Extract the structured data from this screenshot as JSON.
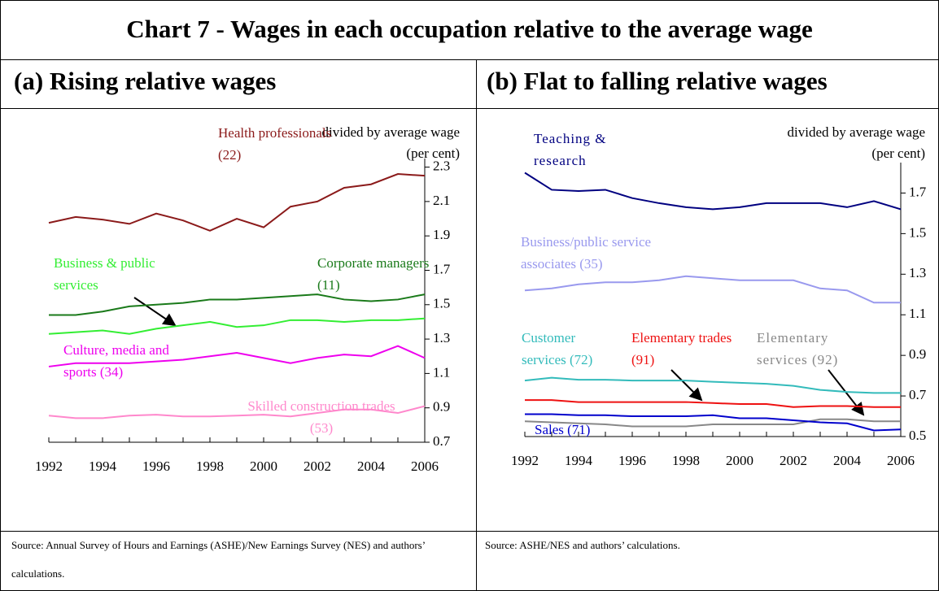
{
  "title": "Chart 7 - Wages in each occupation relative to the average wage",
  "chart_data": [
    {
      "type": "line",
      "title": "(a) Rising relative wages",
      "y_label": "divided by average wage (per cent)",
      "source": "Source: Annual Survey of Hours and Earnings (ASHE)/New Earnings Survey (NES) and authors’ calculations.",
      "x": [
        1992,
        1993,
        1994,
        1995,
        1996,
        1997,
        1998,
        1999,
        2000,
        2001,
        2002,
        2003,
        2004,
        2005,
        2006
      ],
      "xlim": [
        1992,
        2006
      ],
      "xticks": [
        1992,
        1994,
        1996,
        1998,
        2000,
        2002,
        2004,
        2006
      ],
      "ylim": [
        0.7,
        2.35
      ],
      "yticks": [
        0.7,
        0.9,
        1.1,
        1.3,
        1.5,
        1.7,
        1.9,
        2.1,
        2.3
      ],
      "series": [
        {
          "name": "Health professionals (22)",
          "color": "#8b1a1a",
          "values": [
            1.976,
            2.01,
            1.995,
            1.97,
            2.03,
            1.99,
            1.93,
            2.0,
            1.95,
            2.07,
            2.1,
            2.18,
            2.2,
            2.26,
            2.25
          ]
        },
        {
          "name": "Corporate managers (11)",
          "color": "#1a7a1a",
          "values": [
            1.44,
            1.44,
            1.46,
            1.49,
            1.5,
            1.51,
            1.53,
            1.53,
            1.54,
            1.55,
            1.56,
            1.53,
            1.52,
            1.53,
            1.56
          ]
        },
        {
          "name": "Business & public services",
          "color": "#33ee33",
          "values": [
            1.33,
            1.34,
            1.35,
            1.33,
            1.36,
            1.38,
            1.4,
            1.37,
            1.38,
            1.41,
            1.41,
            1.4,
            1.41,
            1.41,
            1.42
          ]
        },
        {
          "name": "Culture, media and sports (34)",
          "color": "#ee00ee",
          "values": [
            1.14,
            1.16,
            1.16,
            1.16,
            1.17,
            1.18,
            1.2,
            1.22,
            1.19,
            1.16,
            1.19,
            1.21,
            1.2,
            1.26,
            1.19
          ]
        },
        {
          "name": "Skilled construction trades (53)",
          "color": "#ff88cc",
          "values": [
            0.855,
            0.84,
            0.84,
            0.855,
            0.86,
            0.85,
            0.85,
            0.855,
            0.86,
            0.85,
            0.87,
            0.89,
            0.89,
            0.87,
            0.91
          ]
        }
      ]
    },
    {
      "type": "line",
      "title": "(b) Flat to falling relative wages",
      "y_label": "divided by average wage (per cent)",
      "source": "Source: ASHE/NES and authors’ calculations.",
      "x": [
        1992,
        1993,
        1994,
        1995,
        1996,
        1997,
        1998,
        1999,
        2000,
        2001,
        2002,
        2003,
        2004,
        2005,
        2006
      ],
      "xlim": [
        1992,
        2006
      ],
      "xticks": [
        1992,
        1994,
        1996,
        1998,
        2000,
        2002,
        2004,
        2006
      ],
      "ylim": [
        0.5,
        1.85
      ],
      "yticks": [
        0.5,
        0.7,
        0.9,
        1.1,
        1.3,
        1.5,
        1.7
      ],
      "series": [
        {
          "name": "Teaching & research",
          "color": "#000080",
          "values": [
            1.8,
            1.716,
            1.71,
            1.716,
            1.675,
            1.65,
            1.63,
            1.62,
            1.63,
            1.65,
            1.65,
            1.65,
            1.63,
            1.66,
            1.62
          ]
        },
        {
          "name": "Business/public service associates (35)",
          "color": "#9999ee",
          "values": [
            1.22,
            1.23,
            1.25,
            1.26,
            1.26,
            1.27,
            1.29,
            1.28,
            1.27,
            1.27,
            1.27,
            1.23,
            1.22,
            1.16,
            1.16
          ]
        },
        {
          "name": "Customer services (72)",
          "color": "#33bbbb",
          "values": [
            0.776,
            0.79,
            0.78,
            0.78,
            0.776,
            0.776,
            0.776,
            0.77,
            0.765,
            0.76,
            0.75,
            0.73,
            0.72,
            0.715,
            0.715
          ]
        },
        {
          "name": "Elementary trades (91)",
          "color": "#ee1111",
          "values": [
            0.68,
            0.68,
            0.67,
            0.67,
            0.67,
            0.67,
            0.67,
            0.665,
            0.66,
            0.66,
            0.645,
            0.65,
            0.65,
            0.645,
            0.645
          ]
        },
        {
          "name": "Elementary services (92)",
          "color": "#888888",
          "values": [
            0.575,
            0.57,
            0.565,
            0.56,
            0.55,
            0.55,
            0.55,
            0.56,
            0.56,
            0.56,
            0.56,
            0.585,
            0.585,
            0.575,
            0.575
          ]
        },
        {
          "name": "Sales (71)",
          "color": "#0000cc",
          "values": [
            0.61,
            0.61,
            0.605,
            0.605,
            0.6,
            0.6,
            0.6,
            0.605,
            0.59,
            0.59,
            0.58,
            0.57,
            0.565,
            0.53,
            0.535
          ]
        }
      ]
    }
  ]
}
